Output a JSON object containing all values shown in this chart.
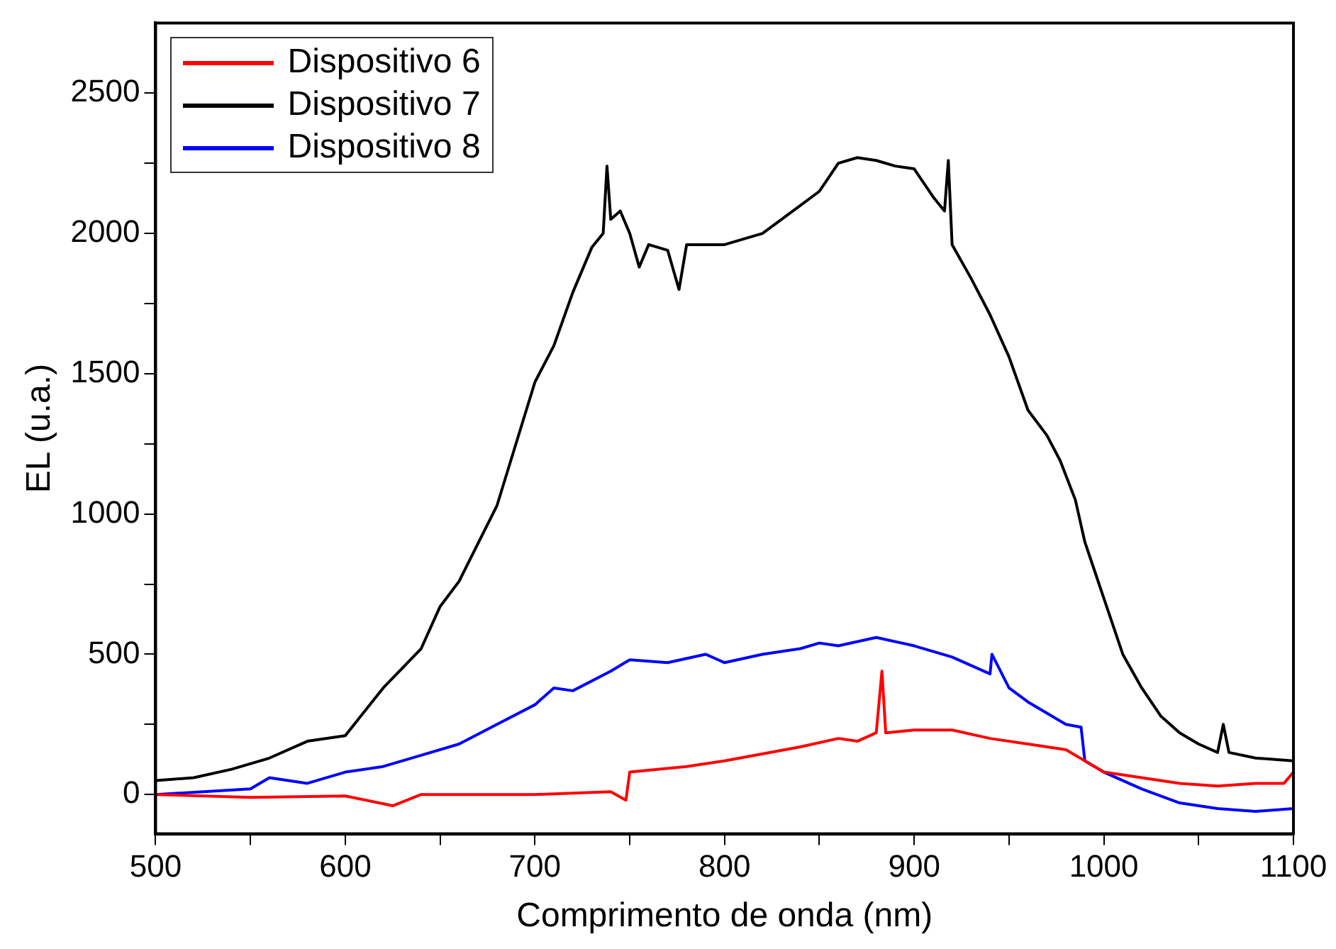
{
  "chart_data": {
    "type": "line",
    "xlabel": "Comprimento de onda (nm)",
    "ylabel": "EL (u.a.)",
    "xlim": [
      500,
      1100
    ],
    "ylim": [
      -140,
      2750
    ],
    "xticks": [
      500,
      {
        "value": 550,
        "label": null
      },
      600,
      {
        "value": 650,
        "label": null
      },
      700,
      {
        "value": 750,
        "label": null
      },
      800,
      {
        "value": 850,
        "label": null
      },
      900,
      {
        "value": 950,
        "label": null
      },
      1000,
      {
        "value": 1050,
        "label": null
      },
      1100
    ],
    "yticks": [
      0,
      {
        "value": 250,
        "label": null
      },
      500,
      {
        "value": 750,
        "label": null
      },
      1000,
      {
        "value": 1250,
        "label": null
      },
      1500,
      {
        "value": 1750,
        "label": null
      },
      2000,
      {
        "value": 2250,
        "label": null
      },
      2500
    ],
    "legend": "top left",
    "grid": false,
    "marker": "none",
    "line_style": "solid",
    "series": [
      {
        "name": "Dispositivo 6",
        "color": "#ff0000",
        "x": [
          500,
          550,
          600,
          625,
          640,
          700,
          740,
          748,
          750,
          780,
          800,
          840,
          860,
          870,
          880,
          883,
          885,
          900,
          920,
          940,
          960,
          980,
          990,
          1000,
          1020,
          1040,
          1060,
          1080,
          1095,
          1100
        ],
        "values": [
          0,
          -10,
          -5,
          -40,
          0,
          0,
          10,
          -20,
          80,
          100,
          120,
          170,
          200,
          190,
          220,
          440,
          220,
          230,
          230,
          200,
          180,
          160,
          120,
          80,
          60,
          40,
          30,
          40,
          40,
          80
        ]
      },
      {
        "name": "Dispositivo 7",
        "color": "#000000",
        "x": [
          500,
          520,
          540,
          560,
          580,
          600,
          620,
          640,
          650,
          660,
          680,
          700,
          710,
          720,
          730,
          736,
          738,
          740,
          745,
          750,
          755,
          760,
          770,
          776,
          780,
          800,
          820,
          840,
          850,
          860,
          870,
          880,
          890,
          900,
          910,
          916,
          918,
          920,
          930,
          940,
          950,
          960,
          970,
          977,
          985,
          990,
          995,
          1000,
          1010,
          1020,
          1030,
          1040,
          1050,
          1060,
          1063,
          1066,
          1080,
          1100
        ],
        "values": [
          50,
          60,
          90,
          130,
          190,
          210,
          380,
          520,
          670,
          760,
          1030,
          1470,
          1600,
          1790,
          1950,
          2000,
          2240,
          2050,
          2080,
          2000,
          1880,
          1960,
          1940,
          1800,
          1960,
          1960,
          2000,
          2100,
          2150,
          2250,
          2270,
          2260,
          2240,
          2230,
          2130,
          2080,
          2260,
          1960,
          1840,
          1710,
          1560,
          1370,
          1280,
          1190,
          1050,
          900,
          800,
          700,
          500,
          380,
          280,
          220,
          180,
          150,
          250,
          150,
          130,
          120
        ]
      },
      {
        "name": "Dispositivo 8",
        "color": "#0000ff",
        "x": [
          500,
          550,
          560,
          580,
          600,
          620,
          640,
          660,
          680,
          700,
          710,
          720,
          740,
          750,
          770,
          790,
          800,
          820,
          840,
          850,
          860,
          880,
          900,
          920,
          940,
          941,
          950,
          960,
          970,
          980,
          988,
          990,
          1000,
          1020,
          1040,
          1060,
          1080,
          1100
        ],
        "values": [
          0,
          20,
          60,
          40,
          80,
          100,
          140,
          180,
          250,
          320,
          380,
          370,
          440,
          480,
          470,
          500,
          470,
          500,
          520,
          540,
          530,
          560,
          530,
          490,
          430,
          500,
          380,
          330,
          290,
          250,
          240,
          120,
          80,
          20,
          -30,
          -50,
          -60,
          -50
        ]
      }
    ]
  }
}
